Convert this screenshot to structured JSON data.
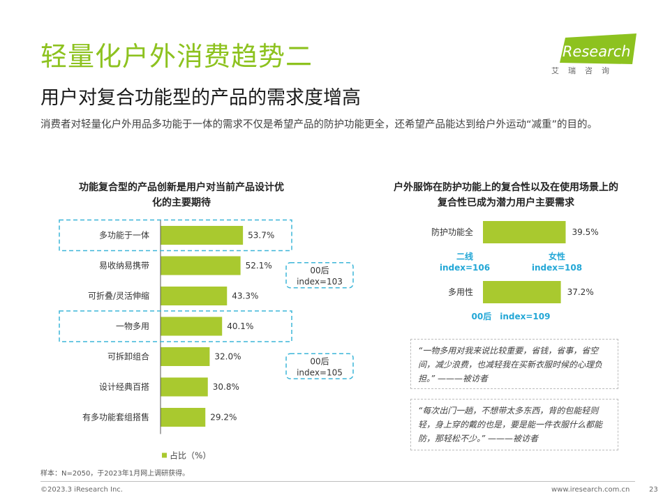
{
  "header": {
    "title": "轻量化户外消费趋势二",
    "subtitle": "用户对复合功能型的产品的需求度增高",
    "intro": "消费者对轻量化户外用品多功能于一体的需求不仅是希望产品的防护功能更全，还希望产品能达到给户外运动“减重”的目的。"
  },
  "logo": {
    "text": "iResearch",
    "sub": "艾瑞咨询"
  },
  "colors": {
    "accent": "#8dc21f",
    "bar": "#a9c92f",
    "highlight": "#3bb5d8",
    "index_text": "#23a7d6"
  },
  "chart_data": [
    {
      "type": "bar",
      "orientation": "horizontal",
      "title": "功能复合型的产品创新是用户对当前产品设计优化的主要期待",
      "categories": [
        "多功能于一体",
        "易收纳易携带",
        "可折叠/灵活伸缩",
        "一物多用",
        "可拆卸组合",
        "设计经典百搭",
        "有多功能套组搭售"
      ],
      "series": [
        {
          "name": "占比（%）",
          "values": [
            53.7,
            52.1,
            43.3,
            40.1,
            32.0,
            30.8,
            29.2
          ]
        }
      ],
      "value_labels": [
        "53.7%",
        "52.1%",
        "43.3%",
        "40.1%",
        "32.0%",
        "30.8%",
        "29.2%"
      ],
      "xlim": [
        0,
        100
      ],
      "legend": "bottom",
      "annotations": [
        {
          "line1": "00后",
          "line2": "index=103"
        },
        {
          "line1": "00后",
          "line2": "index=105"
        }
      ]
    },
    {
      "type": "bar",
      "orientation": "horizontal",
      "title": "户外服饰在防护功能上的复合性以及在使用场景上的复合性已成为潜力用户主要需求",
      "categories": [
        "防护功能全",
        "多用性"
      ],
      "series": [
        {
          "name": "占比（%）",
          "values": [
            39.5,
            37.2
          ]
        }
      ],
      "value_labels": [
        "39.5%",
        "37.2%"
      ],
      "xlim": [
        0,
        100
      ],
      "annotations": [
        {
          "line1": "二线",
          "line2": "index=106"
        },
        {
          "line1": "女性",
          "line2": "index=108"
        },
        {
          "line1": "00后　index=109"
        }
      ]
    }
  ],
  "quotes": [
    {
      "text": "“一物多用对我来说比较重要，省钱，省事，省空间，减少浪费，也减轻我在买新衣服时候的心理负担。” ———被访者"
    },
    {
      "text": "“每次出门一趟，不想带太多东西，背的包能轻则轻，身上穿的戴的也是，要是能一件衣服什么都能防，那轻松不少。” ———被访者"
    }
  ],
  "footer": {
    "note": "样本：N=2050，于2023年1月网上调研获得。",
    "copyright": "©2023.3 iResearch Inc.",
    "website": "www.iresearch.com.cn",
    "page": "23"
  }
}
